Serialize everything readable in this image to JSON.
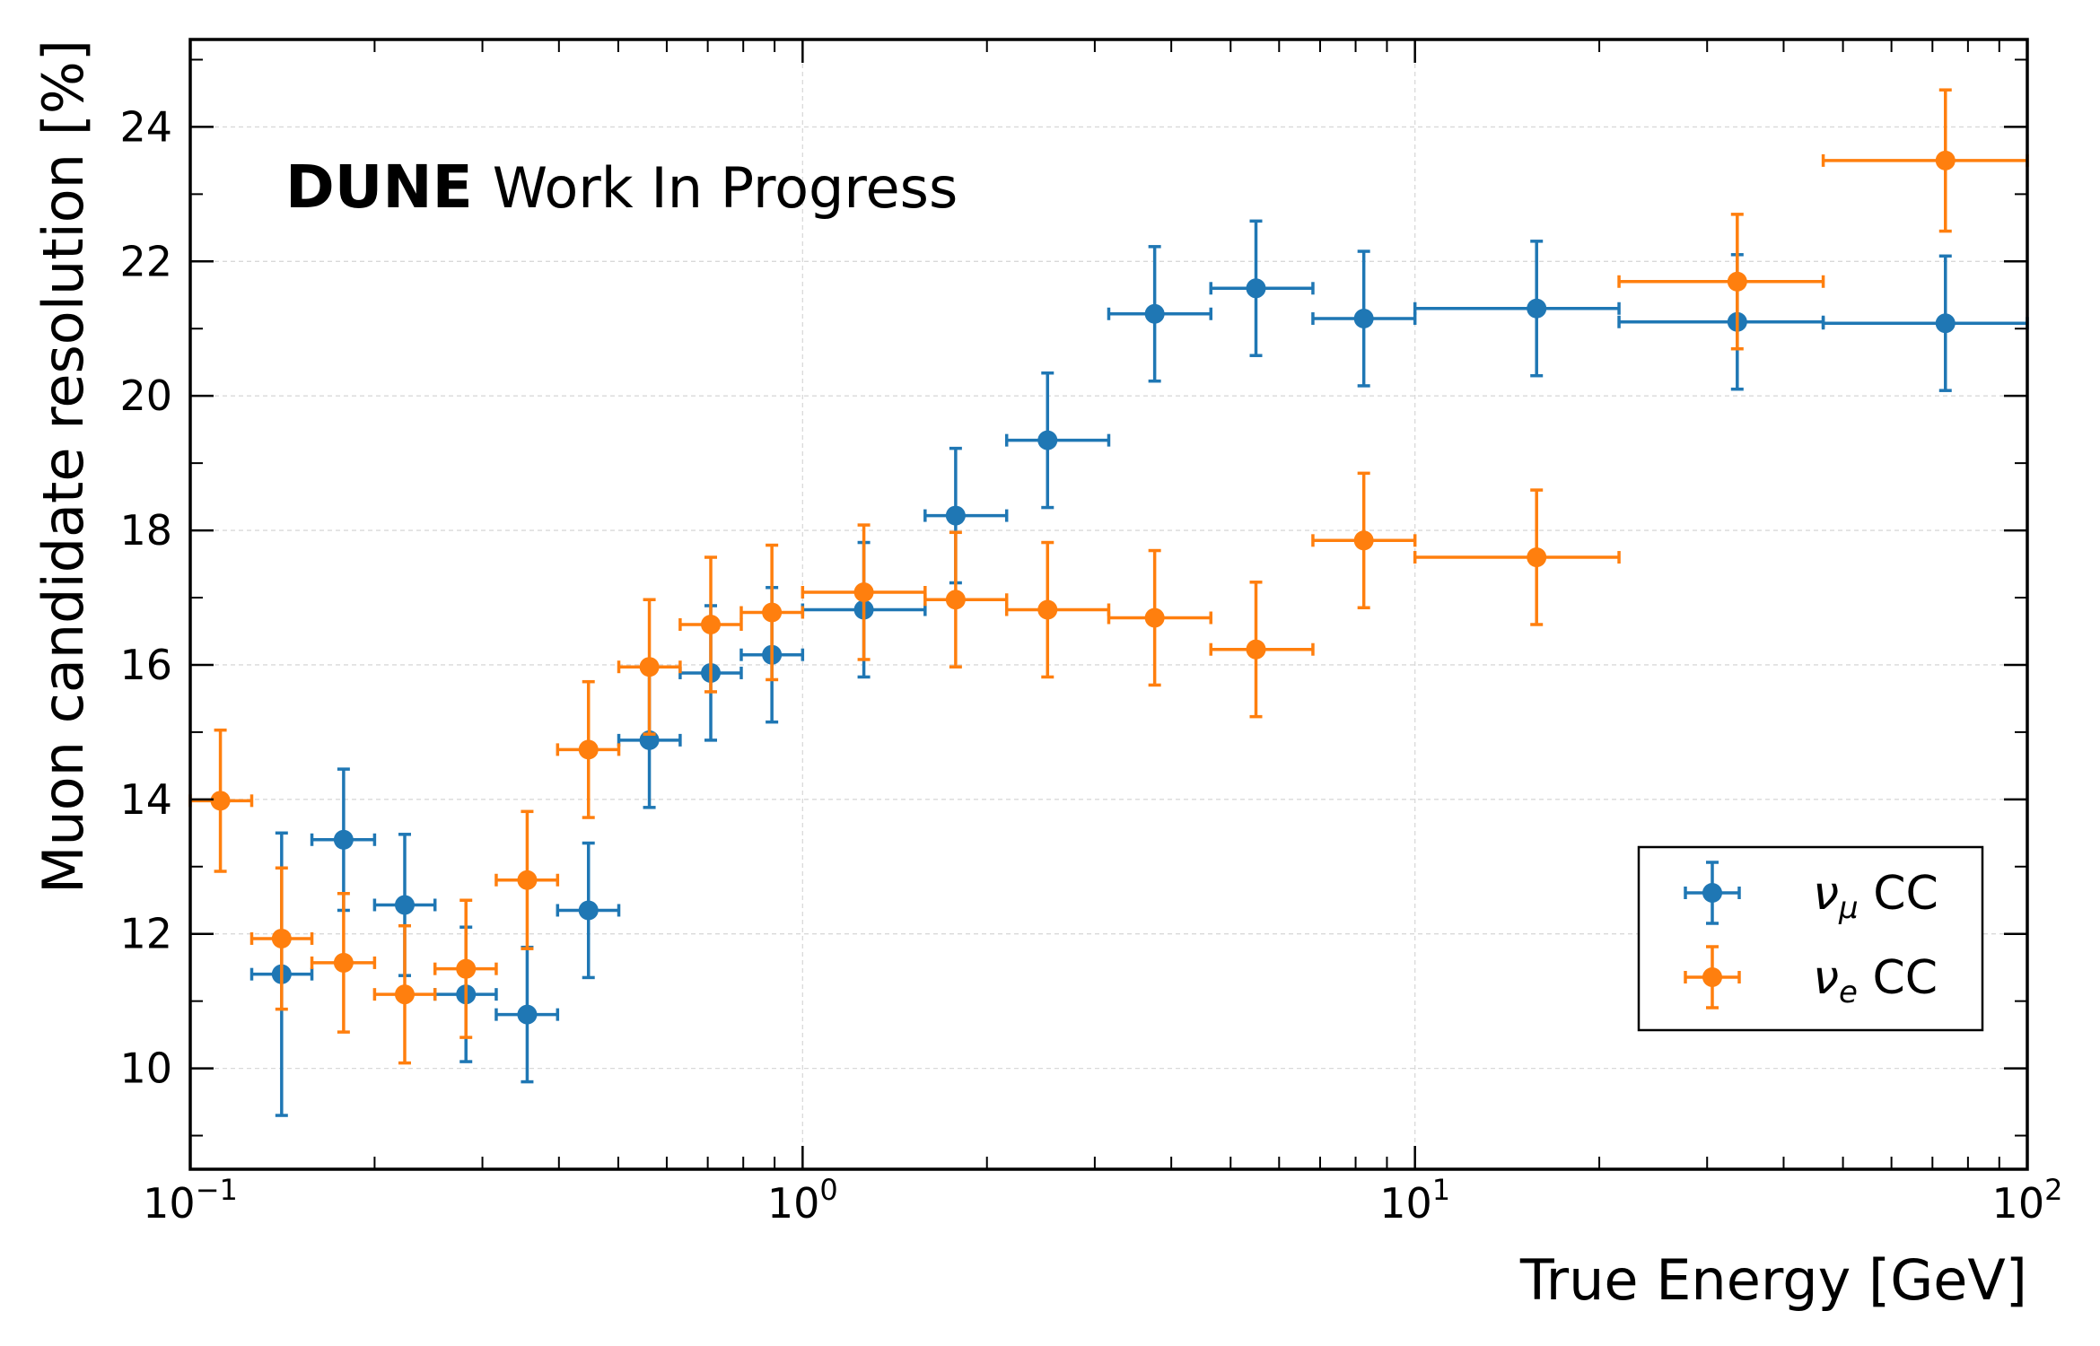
{
  "chart_data": {
    "type": "scatter",
    "annotation": {
      "bold": "DUNE",
      "normal": "Work In Progress"
    },
    "xlabel": "True Energy [GeV]",
    "ylabel": "Muon candidate resolution [%]",
    "xscale": "log",
    "xlim": [
      0.1,
      100
    ],
    "ylim": [
      8.5,
      25.3
    ],
    "x_ticks": [
      {
        "base": "10",
        "exp": "−1",
        "value": 0.1
      },
      {
        "base": "10",
        "exp": "0",
        "value": 1
      },
      {
        "base": "10",
        "exp": "1",
        "value": 10
      },
      {
        "base": "10",
        "exp": "2",
        "value": 100
      }
    ],
    "y_ticks": [
      "10",
      "12",
      "14",
      "16",
      "18",
      "20",
      "22",
      "24"
    ],
    "grid": true,
    "legend_position": "lower-right",
    "series": [
      {
        "name": "ν_μ CC",
        "label_main": "ν",
        "label_sub": "μ",
        "label_rest": " CC",
        "color": "#1f77b4",
        "points": [
          {
            "x": 0.141,
            "xlo": 0.126,
            "xhi": 0.158,
            "y": 11.4,
            "yerr": 2.1
          },
          {
            "x": 0.178,
            "xlo": 0.158,
            "xhi": 0.2,
            "y": 13.4,
            "yerr": 1.05
          },
          {
            "x": 0.224,
            "xlo": 0.2,
            "xhi": 0.251,
            "y": 12.43,
            "yerr": 1.05
          },
          {
            "x": 0.282,
            "xlo": 0.251,
            "xhi": 0.316,
            "y": 11.1,
            "yerr": 1.0
          },
          {
            "x": 0.355,
            "xlo": 0.316,
            "xhi": 0.398,
            "y": 10.8,
            "yerr": 1.0
          },
          {
            "x": 0.447,
            "xlo": 0.398,
            "xhi": 0.501,
            "y": 12.35,
            "yerr": 1.0
          },
          {
            "x": 0.562,
            "xlo": 0.501,
            "xhi": 0.631,
            "y": 14.88,
            "yerr": 1.0
          },
          {
            "x": 0.708,
            "xlo": 0.631,
            "xhi": 0.794,
            "y": 15.88,
            "yerr": 1.0
          },
          {
            "x": 0.891,
            "xlo": 0.794,
            "xhi": 1.0,
            "y": 16.15,
            "yerr": 1.0
          },
          {
            "x": 1.259,
            "xlo": 1.0,
            "xhi": 1.585,
            "y": 16.82,
            "yerr": 1.0
          },
          {
            "x": 1.778,
            "xlo": 1.585,
            "xhi": 2.154,
            "y": 18.22,
            "yerr": 1.0
          },
          {
            "x": 2.512,
            "xlo": 2.154,
            "xhi": 3.162,
            "y": 19.34,
            "yerr": 1.0
          },
          {
            "x": 3.758,
            "xlo": 3.162,
            "xhi": 4.642,
            "y": 21.22,
            "yerr": 1.0
          },
          {
            "x": 5.5,
            "xlo": 4.642,
            "xhi": 6.813,
            "y": 21.6,
            "yerr": 1.0
          },
          {
            "x": 8.25,
            "xlo": 6.813,
            "xhi": 10.0,
            "y": 21.15,
            "yerr": 1.0
          },
          {
            "x": 15.8,
            "xlo": 10.0,
            "xhi": 21.54,
            "y": 21.3,
            "yerr": 1.0
          },
          {
            "x": 33.6,
            "xlo": 21.54,
            "xhi": 46.42,
            "y": 21.1,
            "yerr": 1.0
          },
          {
            "x": 73.5,
            "xlo": 46.42,
            "xhi": 100.0,
            "y": 21.08,
            "yerr": 1.0
          }
        ]
      },
      {
        "name": "ν_e CC",
        "label_main": "ν",
        "label_sub": "e",
        "label_rest": " CC",
        "color": "#ff7f0e",
        "points": [
          {
            "x": 0.112,
            "xlo": 0.1,
            "xhi": 0.126,
            "y": 13.98,
            "yerr": 1.05
          },
          {
            "x": 0.141,
            "xlo": 0.126,
            "xhi": 0.158,
            "y": 11.93,
            "yerr": 1.05
          },
          {
            "x": 0.178,
            "xlo": 0.158,
            "xhi": 0.2,
            "y": 11.57,
            "yerr": 1.03
          },
          {
            "x": 0.224,
            "xlo": 0.2,
            "xhi": 0.251,
            "y": 11.1,
            "yerr": 1.02
          },
          {
            "x": 0.282,
            "xlo": 0.251,
            "xhi": 0.316,
            "y": 11.48,
            "yerr": 1.02
          },
          {
            "x": 0.355,
            "xlo": 0.316,
            "xhi": 0.398,
            "y": 12.8,
            "yerr": 1.02
          },
          {
            "x": 0.447,
            "xlo": 0.398,
            "xhi": 0.501,
            "y": 14.74,
            "yerr": 1.01
          },
          {
            "x": 0.562,
            "xlo": 0.501,
            "xhi": 0.631,
            "y": 15.97,
            "yerr": 1.0
          },
          {
            "x": 0.708,
            "xlo": 0.631,
            "xhi": 0.794,
            "y": 16.6,
            "yerr": 1.0
          },
          {
            "x": 0.891,
            "xlo": 0.794,
            "xhi": 1.0,
            "y": 16.78,
            "yerr": 1.0
          },
          {
            "x": 1.259,
            "xlo": 1.0,
            "xhi": 1.585,
            "y": 17.08,
            "yerr": 1.0
          },
          {
            "x": 1.778,
            "xlo": 1.585,
            "xhi": 2.154,
            "y": 16.97,
            "yerr": 1.0
          },
          {
            "x": 2.512,
            "xlo": 2.154,
            "xhi": 3.162,
            "y": 16.82,
            "yerr": 1.0
          },
          {
            "x": 3.758,
            "xlo": 3.162,
            "xhi": 4.642,
            "y": 16.7,
            "yerr": 1.0
          },
          {
            "x": 5.5,
            "xlo": 4.642,
            "xhi": 6.813,
            "y": 16.23,
            "yerr": 1.0
          },
          {
            "x": 8.25,
            "xlo": 6.813,
            "xhi": 10.0,
            "y": 17.85,
            "yerr": 1.0
          },
          {
            "x": 15.8,
            "xlo": 10.0,
            "xhi": 21.54,
            "y": 17.6,
            "yerr": 1.0
          },
          {
            "x": 33.6,
            "xlo": 21.54,
            "xhi": 46.42,
            "y": 21.7,
            "yerr": 1.0
          },
          {
            "x": 73.5,
            "xlo": 46.42,
            "xhi": 100.0,
            "y": 23.5,
            "yerr": 1.05
          }
        ]
      }
    ]
  }
}
